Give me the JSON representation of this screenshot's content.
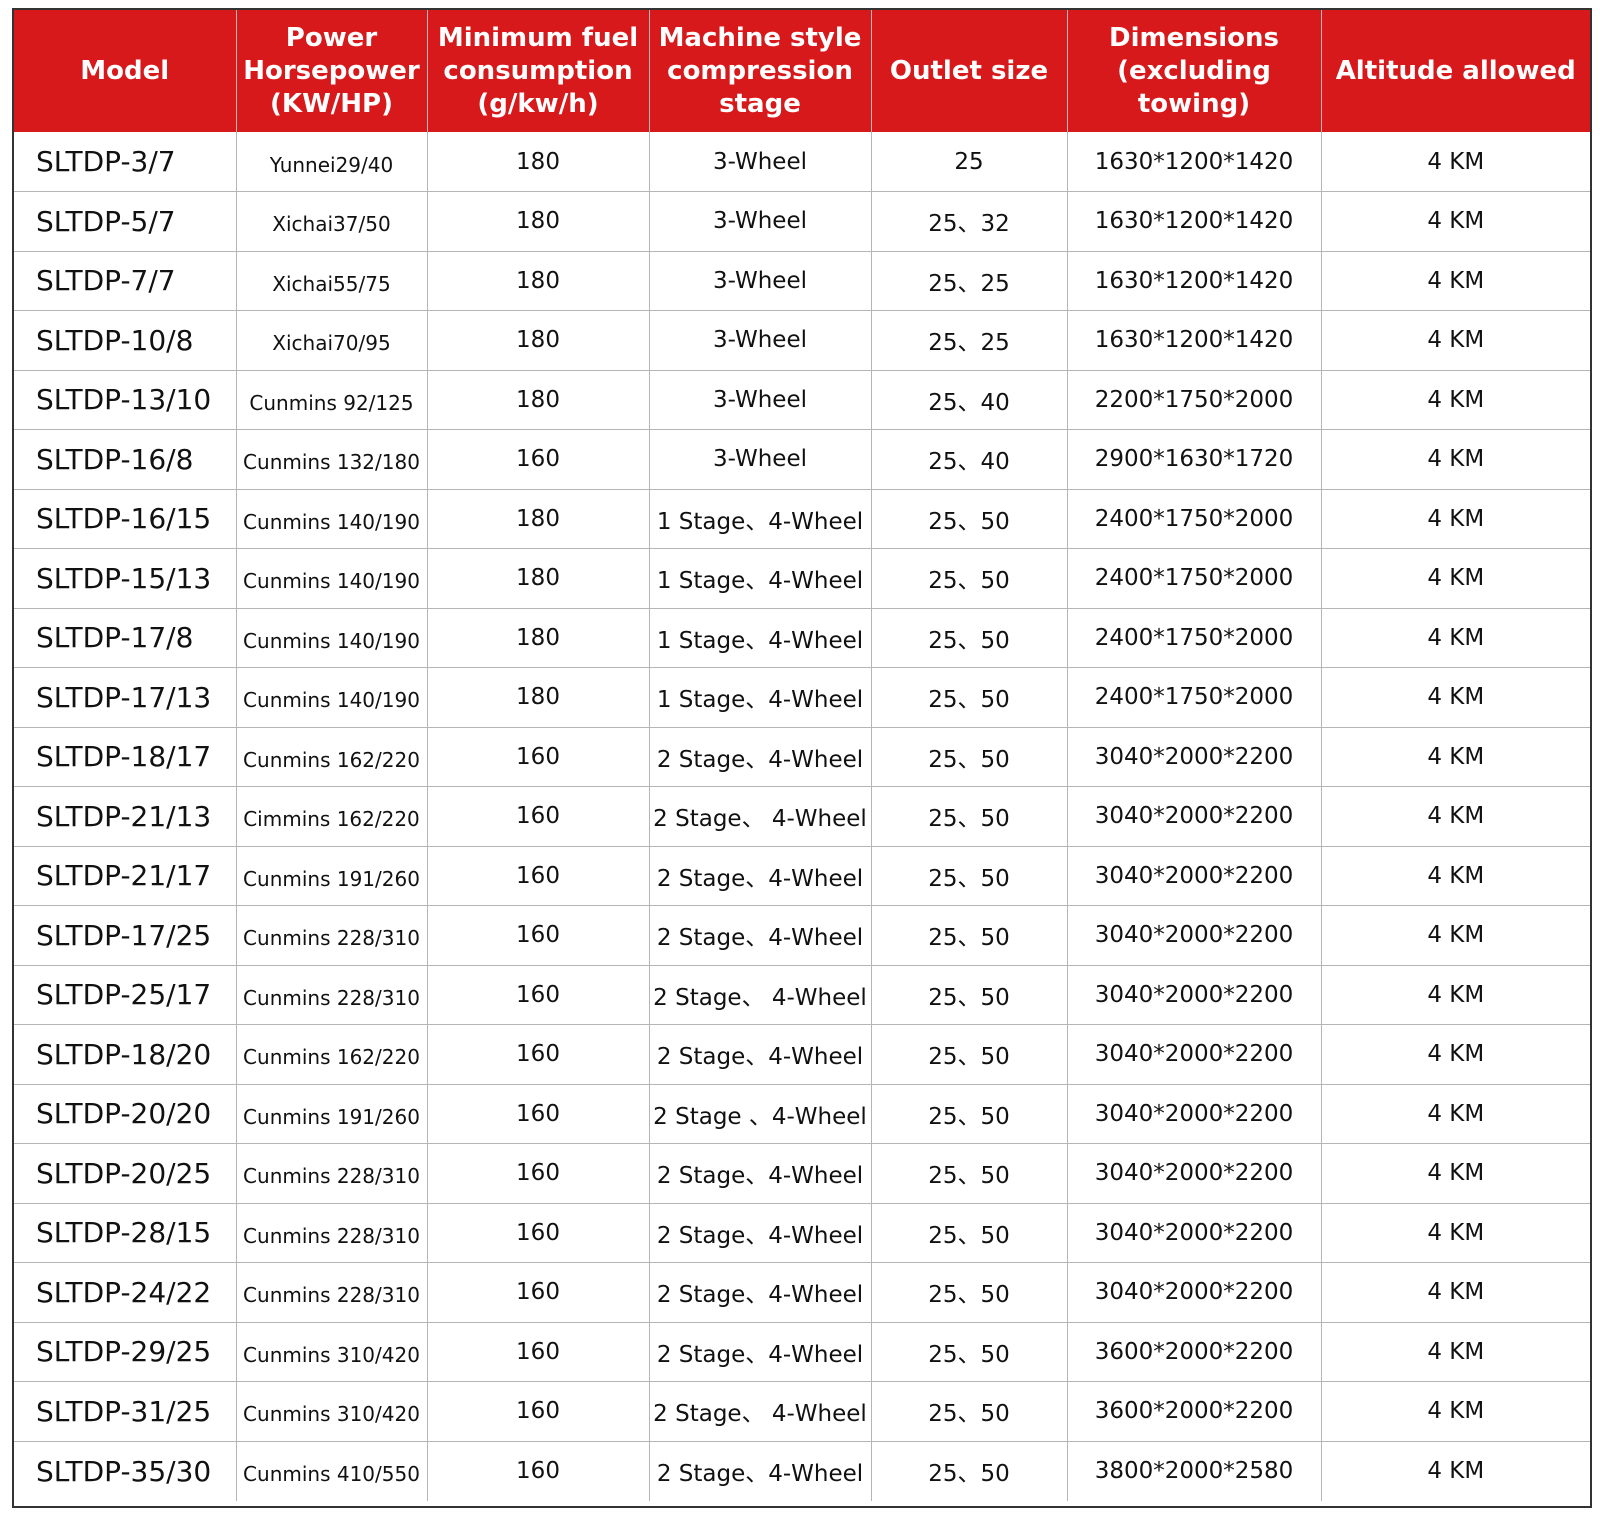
{
  "table": {
    "headers": [
      "Model",
      "Power\nHorsepower\n(KW/HP)",
      "Minimum fuel\nconsumption\n(g/kw/h)",
      "Machine style\ncompression\nstage",
      "Outlet size",
      "Dimensions\n(excluding towing)",
      "Altitude allowed"
    ],
    "rows": [
      [
        "SLTDP-3/7",
        "Yunnei29/40",
        "180",
        "3-Wheel",
        "25",
        "1630*1200*1420",
        "4 KM"
      ],
      [
        "SLTDP-5/7",
        "Xichai37/50",
        "180",
        "3-Wheel",
        "25、32",
        "1630*1200*1420",
        "4 KM"
      ],
      [
        "SLTDP-7/7",
        "Xichai55/75",
        "180",
        "3-Wheel",
        "25、25",
        "1630*1200*1420",
        "4 KM"
      ],
      [
        "SLTDP-10/8",
        "Xichai70/95",
        "180",
        "3-Wheel",
        "25、25",
        "1630*1200*1420",
        "4 KM"
      ],
      [
        "SLTDP-13/10",
        "Cunmins 92/125",
        "180",
        "3-Wheel",
        "25、40",
        "2200*1750*2000",
        "4 KM"
      ],
      [
        "SLTDP-16/8",
        "Cunmins 132/180",
        "160",
        "3-Wheel",
        "25、40",
        "2900*1630*1720",
        "4 KM"
      ],
      [
        "SLTDP-16/15",
        "Cunmins 140/190",
        "180",
        "1 Stage、4-Wheel",
        "25、50",
        "2400*1750*2000",
        "4 KM"
      ],
      [
        "SLTDP-15/13",
        "Cunmins 140/190",
        "180",
        "1 Stage、4-Wheel",
        "25、50",
        "2400*1750*2000",
        "4 KM"
      ],
      [
        "SLTDP-17/8",
        "Cunmins 140/190",
        "180",
        "1 Stage、4-Wheel",
        "25、50",
        "2400*1750*2000",
        "4 KM"
      ],
      [
        "SLTDP-17/13",
        "Cunmins 140/190",
        "180",
        "1 Stage、4-Wheel",
        "25、50",
        "2400*1750*2000",
        "4 KM"
      ],
      [
        "SLTDP-18/17",
        "Cunmins 162/220",
        "160",
        "2 Stage、4-Wheel",
        "25、50",
        "3040*2000*2200",
        "4 KM"
      ],
      [
        "SLTDP-21/13",
        "Cimmins 162/220",
        "160",
        "2 Stage、 4-Wheel",
        "25、50",
        "3040*2000*2200",
        "4 KM"
      ],
      [
        "SLTDP-21/17",
        "Cunmins 191/260",
        "160",
        "2 Stage、4-Wheel",
        "25、50",
        "3040*2000*2200",
        "4 KM"
      ],
      [
        "SLTDP-17/25",
        "Cunmins 228/310",
        "160",
        "2 Stage、4-Wheel",
        "25、50",
        "3040*2000*2200",
        "4 KM"
      ],
      [
        "SLTDP-25/17",
        "Cunmins 228/310",
        "160",
        "2 Stage、 4-Wheel",
        "25、50",
        "3040*2000*2200",
        "4 KM"
      ],
      [
        "SLTDP-18/20",
        "Cunmins 162/220",
        "160",
        "2 Stage、4-Wheel",
        "25、50",
        "3040*2000*2200",
        "4 KM"
      ],
      [
        "SLTDP-20/20",
        "Cunmins 191/260",
        "160",
        "2 Stage 、4-Wheel",
        "25、50",
        "3040*2000*2200",
        "4 KM"
      ],
      [
        "SLTDP-20/25",
        "Cunmins 228/310",
        "160",
        "2 Stage、4-Wheel",
        "25、50",
        "3040*2000*2200",
        "4 KM"
      ],
      [
        "SLTDP-28/15",
        "Cunmins 228/310",
        "160",
        "2 Stage、4-Wheel",
        "25、50",
        "3040*2000*2200",
        "4 KM"
      ],
      [
        "SLTDP-24/22",
        "Cunmins 228/310",
        "160",
        "2 Stage、4-Wheel",
        "25、50",
        "3040*2000*2200",
        "4 KM"
      ],
      [
        "SLTDP-29/25",
        "Cunmins 310/420",
        "160",
        "2 Stage、4-Wheel",
        "25、50",
        "3600*2000*2200",
        "4 KM"
      ],
      [
        "SLTDP-31/25",
        "Cunmins 310/420",
        "160",
        "2 Stage、 4-Wheel",
        "25、50",
        "3600*2000*2200",
        "4 KM"
      ],
      [
        "SLTDP-35/30",
        "Cunmins 410/550",
        "160",
        "2 Stage、4-Wheel",
        "25、50",
        "3800*2000*2580",
        "4 KM"
      ]
    ]
  },
  "colors": {
    "header_bg": "#d7191c",
    "header_text": "#ffffff"
  }
}
